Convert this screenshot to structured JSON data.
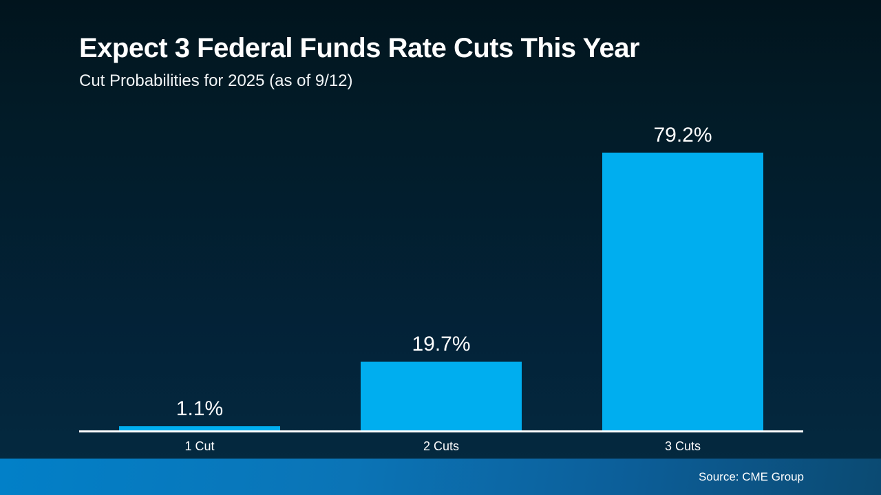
{
  "header": {
    "title": "Expect 3 Federal Funds Rate Cuts This Year",
    "subtitle": "Cut Probabilities for 2025 (as of 9/12)"
  },
  "chart_data": {
    "type": "bar",
    "title": "Expect 3 Federal Funds Rate Cuts This Year",
    "subtitle": "Cut Probabilities for 2025 (as of 9/12)",
    "categories": [
      "1 Cut",
      "2 Cuts",
      "3 Cuts"
    ],
    "values": [
      1.1,
      19.7,
      79.2
    ],
    "value_labels": [
      "1.1%",
      "19.7%",
      "79.2%"
    ],
    "unit": "percent",
    "xlabel": "",
    "ylabel": "",
    "ylim": [
      0,
      85
    ],
    "gridlines": false,
    "legend": "none",
    "y_axis_visible": false,
    "baseline_visible": true
  },
  "footer": {
    "source": "Source: CME Group"
  },
  "colors": {
    "bar": "#00AEEF",
    "axis": "#FFFFFF",
    "text": "#FFFFFF",
    "background_top": "#01141D",
    "background_bottom": "#04293F",
    "footer_gradient_left": "#0280C8",
    "footer_gradient_right": "#0B4A72"
  }
}
